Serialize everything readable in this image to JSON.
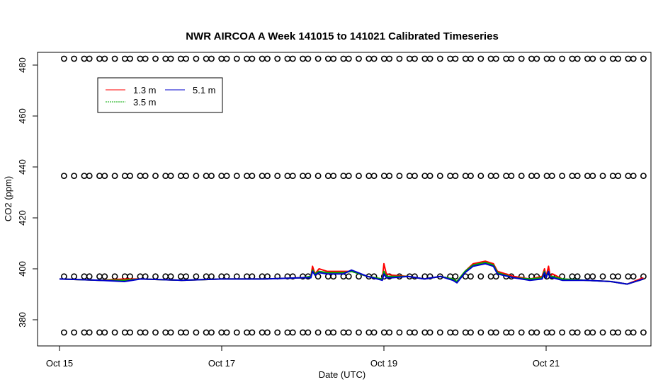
{
  "chart_data": {
    "type": "line",
    "title": "NWR AIRCOA A  Week 141015 to 141021  Calibrated Timeseries",
    "xlabel": "Date (UTC)",
    "ylabel": "CO2 (ppm)",
    "x_unit": "day",
    "xlim": [
      0,
      7.3
    ],
    "ylim": [
      370,
      487
    ],
    "x_ticks": [
      {
        "value": 0,
        "label": "Oct 15"
      },
      {
        "value": 2,
        "label": "Oct 17"
      },
      {
        "value": 4,
        "label": "Oct 19"
      },
      {
        "value": 6,
        "label": "Oct 21"
      }
    ],
    "y_ticks": [
      380,
      400,
      420,
      440,
      460,
      480
    ],
    "grid": false,
    "legend": {
      "position": "top-left",
      "entries": [
        {
          "label": "1.3 m",
          "color": "#ff0000"
        },
        {
          "label": "5.1 m",
          "color": "#0000cc"
        },
        {
          "label": "3.5 m",
          "color": "#00aa00"
        }
      ]
    },
    "series": [
      {
        "name": "1.3 m",
        "color": "#ff0000",
        "x": [
          0.0,
          0.5,
          0.8,
          1.0,
          1.5,
          2.0,
          2.5,
          3.0,
          3.1,
          3.12,
          3.15,
          3.2,
          3.3,
          3.5,
          3.6,
          3.8,
          3.98,
          4.0,
          4.03,
          4.1,
          4.3,
          4.5,
          4.7,
          4.85,
          4.9,
          5.0,
          5.1,
          5.25,
          5.35,
          5.4,
          5.6,
          5.8,
          5.95,
          5.98,
          6.0,
          6.03,
          6.05,
          6.08,
          6.2,
          6.5,
          6.8,
          7.0,
          7.2
        ],
        "y": [
          396,
          395.5,
          396,
          396,
          395.5,
          396,
          396,
          396.5,
          397,
          401,
          398,
          400,
          399,
          399,
          399,
          397,
          396,
          402,
          398,
          397.5,
          397,
          396,
          397,
          396,
          395,
          399,
          402,
          403,
          402,
          399,
          397,
          396,
          397,
          400,
          397,
          401,
          397,
          398,
          396,
          395.5,
          395,
          394,
          396.5
        ]
      },
      {
        "name": "3.5 m",
        "color": "#00aa00",
        "x": [
          0.0,
          0.5,
          0.8,
          1.0,
          1.5,
          2.0,
          2.5,
          3.0,
          3.1,
          3.12,
          3.15,
          3.2,
          3.3,
          3.5,
          3.6,
          3.8,
          3.98,
          4.0,
          4.03,
          4.1,
          4.3,
          4.5,
          4.7,
          4.85,
          4.9,
          5.0,
          5.1,
          5.25,
          5.35,
          5.4,
          5.6,
          5.8,
          5.95,
          5.98,
          6.0,
          6.03,
          6.05,
          6.08,
          6.2,
          6.5,
          6.8,
          7.0,
          7.2
        ],
        "y": [
          396,
          395.5,
          395.5,
          396,
          395.5,
          396,
          396,
          396.5,
          397,
          399.5,
          398,
          399,
          398.5,
          398.5,
          399,
          397,
          396,
          399,
          397,
          397,
          397,
          396,
          397,
          396,
          395,
          399,
          401.5,
          402.5,
          401.5,
          398.5,
          396.5,
          396,
          396.5,
          399,
          397,
          399,
          397,
          397,
          396,
          395.5,
          395,
          394,
          396
        ]
      },
      {
        "name": "5.1 m",
        "color": "#0000cc",
        "x": [
          0.0,
          0.5,
          0.8,
          1.0,
          1.5,
          2.0,
          2.5,
          3.0,
          3.1,
          3.12,
          3.15,
          3.2,
          3.3,
          3.5,
          3.6,
          3.8,
          3.98,
          4.0,
          4.03,
          4.1,
          4.3,
          4.5,
          4.7,
          4.85,
          4.9,
          5.0,
          5.1,
          5.25,
          5.35,
          5.4,
          5.6,
          5.8,
          5.95,
          5.98,
          6.0,
          6.03,
          6.05,
          6.08,
          6.2,
          6.5,
          6.8,
          7.0,
          7.2
        ],
        "y": [
          396,
          395.5,
          395,
          396,
          395.5,
          396,
          396,
          396.5,
          396.5,
          399,
          397.5,
          398.5,
          398,
          398,
          399.5,
          397,
          395.5,
          398,
          396.5,
          396.5,
          397,
          396,
          397,
          395.5,
          394.5,
          398.5,
          401,
          402,
          401,
          398,
          396.5,
          395.5,
          396,
          398.5,
          396.5,
          399,
          396.5,
          396.5,
          395.5,
          395.5,
          395,
          394,
          396
        ]
      },
      {
        "name": "",
        "color": "#000000",
        "marker": "circle",
        "points_per_level": 72,
        "levels": [
          482.5,
          436.5,
          397,
          375
        ]
      }
    ]
  }
}
